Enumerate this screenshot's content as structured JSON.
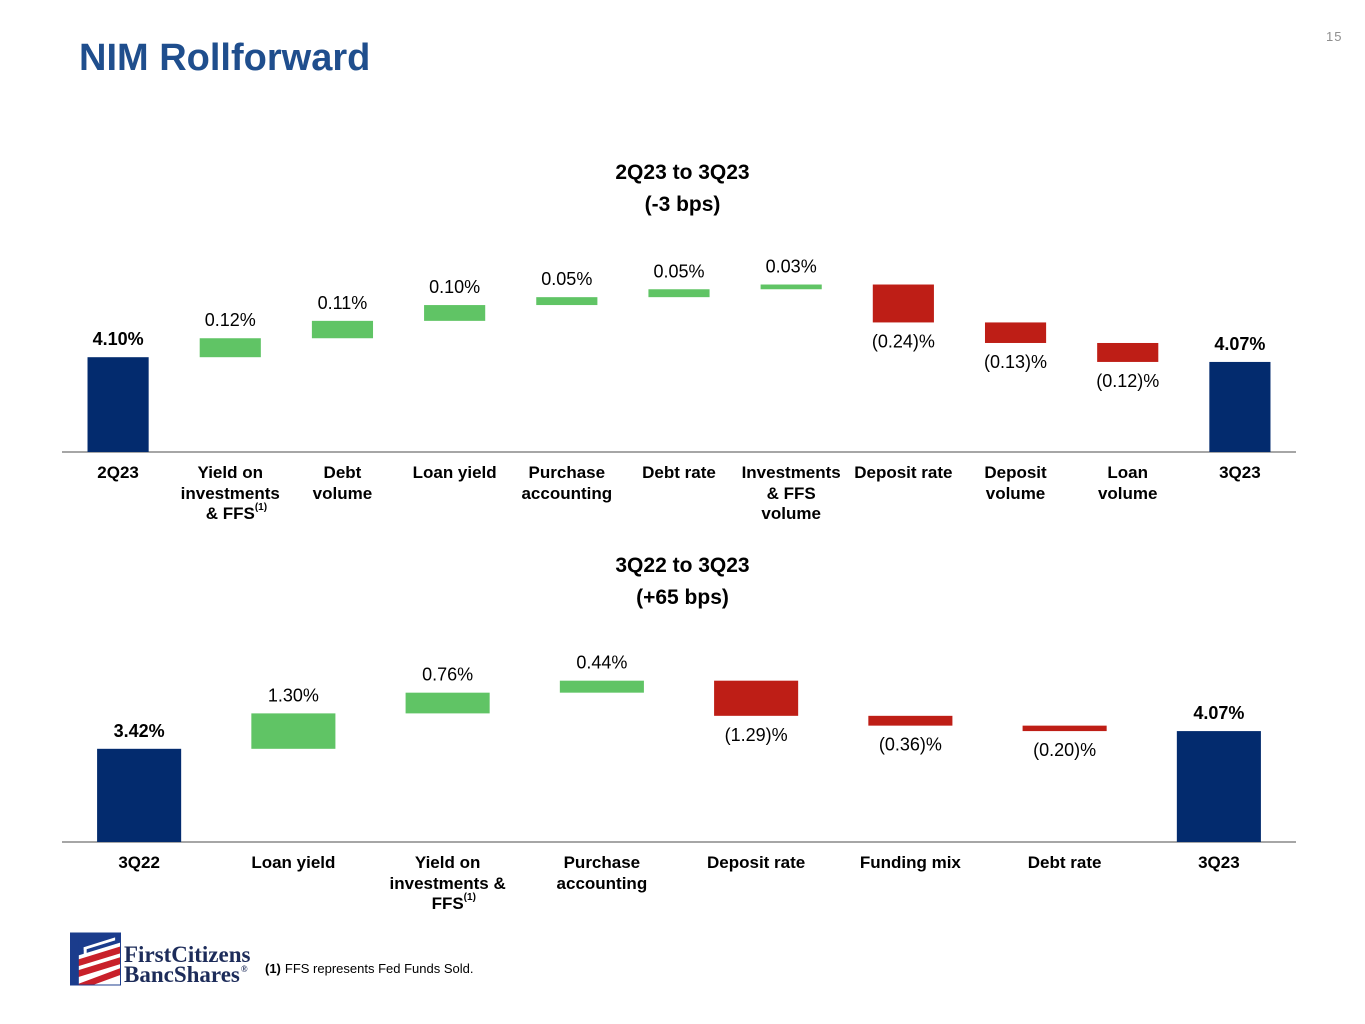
{
  "slide": {
    "title": "NIM Rollforward",
    "page_number": "15"
  },
  "colors": {
    "title": "#1F4E8D",
    "total": "#032B6E",
    "increase": "#60C465",
    "decrease": "#BE1E16",
    "axis": "#A6A6A6"
  },
  "chart_data": [
    {
      "type": "bar",
      "title": "2Q23 to 3Q23",
      "subtitle": "(-3 bps)",
      "ylim": [
        3.5,
        5.0
      ],
      "grid": false,
      "categories": [
        "2Q23",
        "Yield on\ninvestments\n& FFS",
        "Debt\nvolume",
        "Loan yield",
        "Purchase\naccounting",
        "Debt rate",
        "Investments\n& FFS\nvolume",
        "Deposit rate",
        "Deposit\nvolume",
        "Loan\nvolume",
        "3Q23"
      ],
      "category_notes": [
        null,
        "(1)",
        null,
        null,
        null,
        null,
        null,
        null,
        null,
        null,
        null
      ],
      "values": [
        4.1,
        0.12,
        0.11,
        0.1,
        0.05,
        0.05,
        0.03,
        -0.24,
        -0.13,
        -0.12,
        4.07
      ],
      "totals": [
        true,
        false,
        false,
        false,
        false,
        false,
        false,
        false,
        false,
        false,
        true
      ],
      "data_labels": [
        "4.10%",
        "0.12%",
        "0.11%",
        "0.10%",
        "0.05%",
        "0.05%",
        "0.03%",
        "(0.24)%",
        "(0.13)%",
        "(0.12)%",
        "4.07%"
      ]
    },
    {
      "type": "bar",
      "title": "3Q22 to 3Q23",
      "subtitle": "(+65 bps)",
      "ylim": [
        0,
        8
      ],
      "grid": false,
      "categories": [
        "3Q22",
        "Loan yield",
        "Yield on\ninvestments &\nFFS",
        "Purchase\naccounting",
        "Deposit rate",
        "Funding mix",
        "Debt rate",
        "3Q23"
      ],
      "category_notes": [
        null,
        null,
        "(1)",
        null,
        null,
        null,
        null,
        null
      ],
      "values": [
        3.42,
        1.3,
        0.76,
        0.44,
        -1.29,
        -0.36,
        -0.2,
        4.07
      ],
      "totals": [
        true,
        false,
        false,
        false,
        false,
        false,
        false,
        true
      ],
      "data_labels": [
        "3.42%",
        "1.30%",
        "0.76%",
        "0.44%",
        "(1.29)%",
        "(0.36)%",
        "(0.20)%",
        "4.07%"
      ]
    }
  ],
  "logo": {
    "icon": "flag-emblem-icon",
    "line1": "FirstCitizens",
    "line2": "BancShares",
    "registered_mark": "®"
  },
  "footnote": {
    "marker": "(1)",
    "text": "FFS represents Fed Funds Sold."
  }
}
